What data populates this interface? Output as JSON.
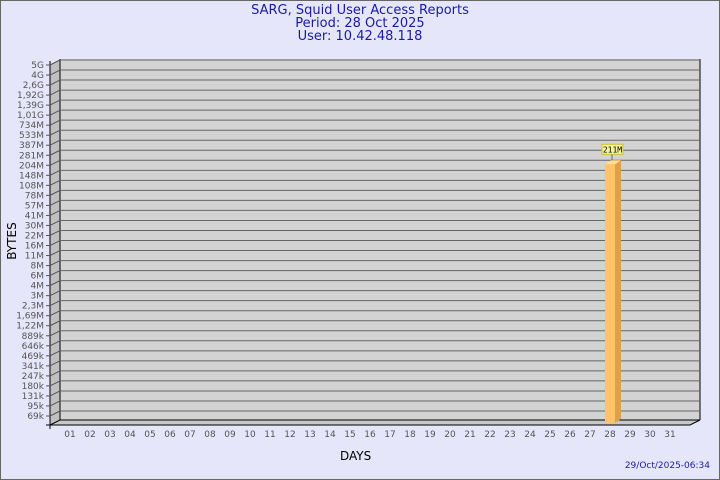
{
  "chart_data": {
    "type": "bar",
    "title": "SARG, Squid User Access Reports",
    "subtitle_period": "Period: 28 Oct 2025",
    "subtitle_user": "User: 10.42.48.118",
    "xlabel": "DAYS",
    "ylabel": "BYTES",
    "y_scale": "log",
    "y_tick_labels": [
      "5G",
      "4G",
      "2,6G",
      "1,92G",
      "1,39G",
      "1,01G",
      "734M",
      "533M",
      "387M",
      "281M",
      "204M",
      "148M",
      "108M",
      "78M",
      "57M",
      "41M",
      "30M",
      "22M",
      "16M",
      "11M",
      "8M",
      "6M",
      "4M",
      "3M",
      "2,3M",
      "1,69M",
      "1,22M",
      "889k",
      "646k",
      "469k",
      "341k",
      "247k",
      "180k",
      "131k",
      "95k",
      "69k"
    ],
    "categories": [
      "01",
      "02",
      "03",
      "04",
      "05",
      "06",
      "07",
      "08",
      "09",
      "10",
      "11",
      "12",
      "13",
      "14",
      "15",
      "16",
      "17",
      "18",
      "19",
      "20",
      "21",
      "22",
      "23",
      "24",
      "25",
      "26",
      "27",
      "28",
      "29",
      "30",
      "31"
    ],
    "bars": [
      {
        "day": "28",
        "value_bytes": 211000000,
        "label": "211M"
      }
    ],
    "grid": true,
    "colors": {
      "bar": "#ffc469",
      "bar_side": "#dca24a",
      "plot_bg": "#d3d3d3",
      "title": "#1a1aa6",
      "background": "#e6e6fa"
    }
  },
  "timestamp": "29/Oct/2025-06:34"
}
